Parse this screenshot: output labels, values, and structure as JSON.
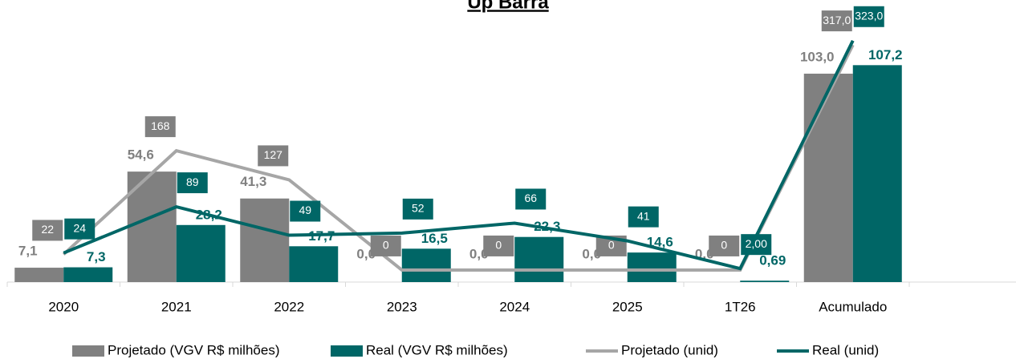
{
  "chart_data": {
    "type": "bar",
    "title": "Up Barra",
    "categories": [
      "2020",
      "2021",
      "2022",
      "2023",
      "2024",
      "2025",
      "1T26",
      "Acumulado"
    ],
    "series": [
      {
        "name": "Projetado (VGV R$ milhões)",
        "type": "bar",
        "color": "#808080",
        "values": [
          7.1,
          54.6,
          41.3,
          0,
          0,
          0,
          0,
          103.0
        ],
        "value_labels": [
          "7,1",
          "54,6",
          "41,3",
          "0,0",
          "0,0",
          "0,0",
          "0,0",
          "103,0"
        ]
      },
      {
        "name": "Real (VGV R$ milhões)",
        "type": "bar",
        "color": "#006666",
        "values": [
          7.3,
          28.2,
          17.7,
          16.5,
          22.3,
          14.6,
          0.69,
          107.2
        ],
        "value_labels": [
          "7,3",
          "28,2",
          "17,7",
          "16,5",
          "22,3",
          "14,6",
          "0,69",
          "107,2"
        ]
      },
      {
        "name": "Projetado (unid)",
        "type": "line",
        "axis": "y2",
        "color": "#a6a6a6",
        "box_color": "#808080",
        "values": [
          22,
          168,
          127,
          0,
          0,
          0,
          0,
          317
        ],
        "value_labels": [
          "22",
          "168",
          "127",
          "0",
          "0",
          "0",
          "0",
          "317,0"
        ]
      },
      {
        "name": "Real (unid)",
        "type": "line",
        "axis": "y2",
        "color": "#006666",
        "box_color": "#006666",
        "values": [
          24,
          89,
          49,
          52,
          66,
          41,
          2,
          323
        ],
        "value_labels": [
          "24",
          "89",
          "49",
          "52",
          "66",
          "41",
          "2,00",
          "323,0"
        ]
      }
    ],
    "ylim": [
      0,
      120
    ],
    "y2lim": [
      -17,
      325
    ],
    "grid": false,
    "legend": "bottom"
  }
}
